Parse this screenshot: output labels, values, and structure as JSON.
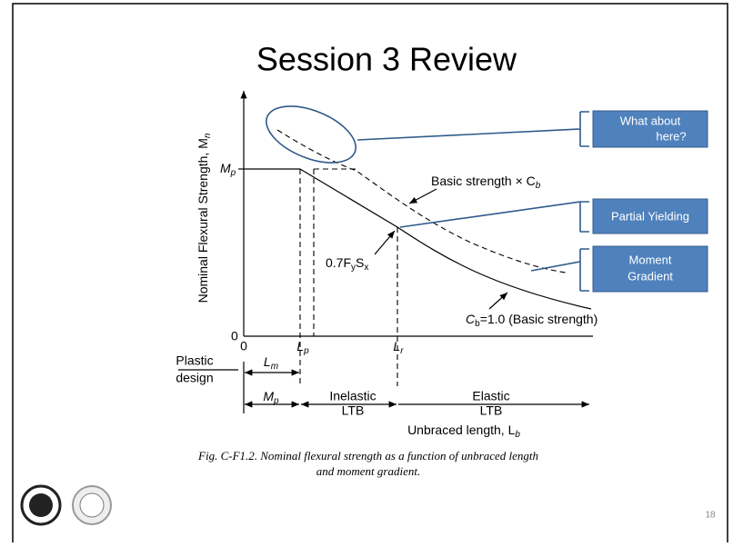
{
  "slide": {
    "title": "Session 3 Review",
    "callouts": [
      {
        "lines": [
          "What about",
          "here?"
        ]
      },
      {
        "lines": [
          "Partial Yielding"
        ]
      },
      {
        "lines": [
          "Moment",
          "Gradient"
        ]
      }
    ],
    "figure": {
      "y_axis_label": {
        "main": "Nominal Flexural Strength, M",
        "sub": "n"
      },
      "mp_label": {
        "main": "M",
        "sub": "p"
      },
      "y_zero": "0",
      "x_zero": "0",
      "lp_label": {
        "main": "L",
        "sub": "p"
      },
      "lr_label": {
        "main": "L",
        "sub": "r"
      },
      "basic_cb_label": {
        "main": "Basic strength × C",
        "sub": "b"
      },
      "fysx_label": {
        "a": "0.7F",
        "a_sub": "y",
        "b": "S",
        "b_sub": "x"
      },
      "cb1_label": {
        "main": "C",
        "sub": "b",
        "rest": "=1.0 (Basic strength)"
      },
      "plastic_design": [
        "Plastic",
        "design"
      ],
      "lm_label": {
        "main": "L",
        "sub": "m"
      },
      "mp_zone": {
        "main": "M",
        "sub": "p"
      },
      "inelastic": [
        "Inelastic",
        "LTB"
      ],
      "elastic": [
        "Elastic",
        "LTB"
      ],
      "x_axis_label": {
        "main": "Unbraced length, L",
        "sub": "b"
      },
      "caption": [
        "Fig. C-F1.2. Nominal flexural strength as a function of unbraced length",
        "and moment gradient."
      ]
    },
    "page_number": "18"
  }
}
